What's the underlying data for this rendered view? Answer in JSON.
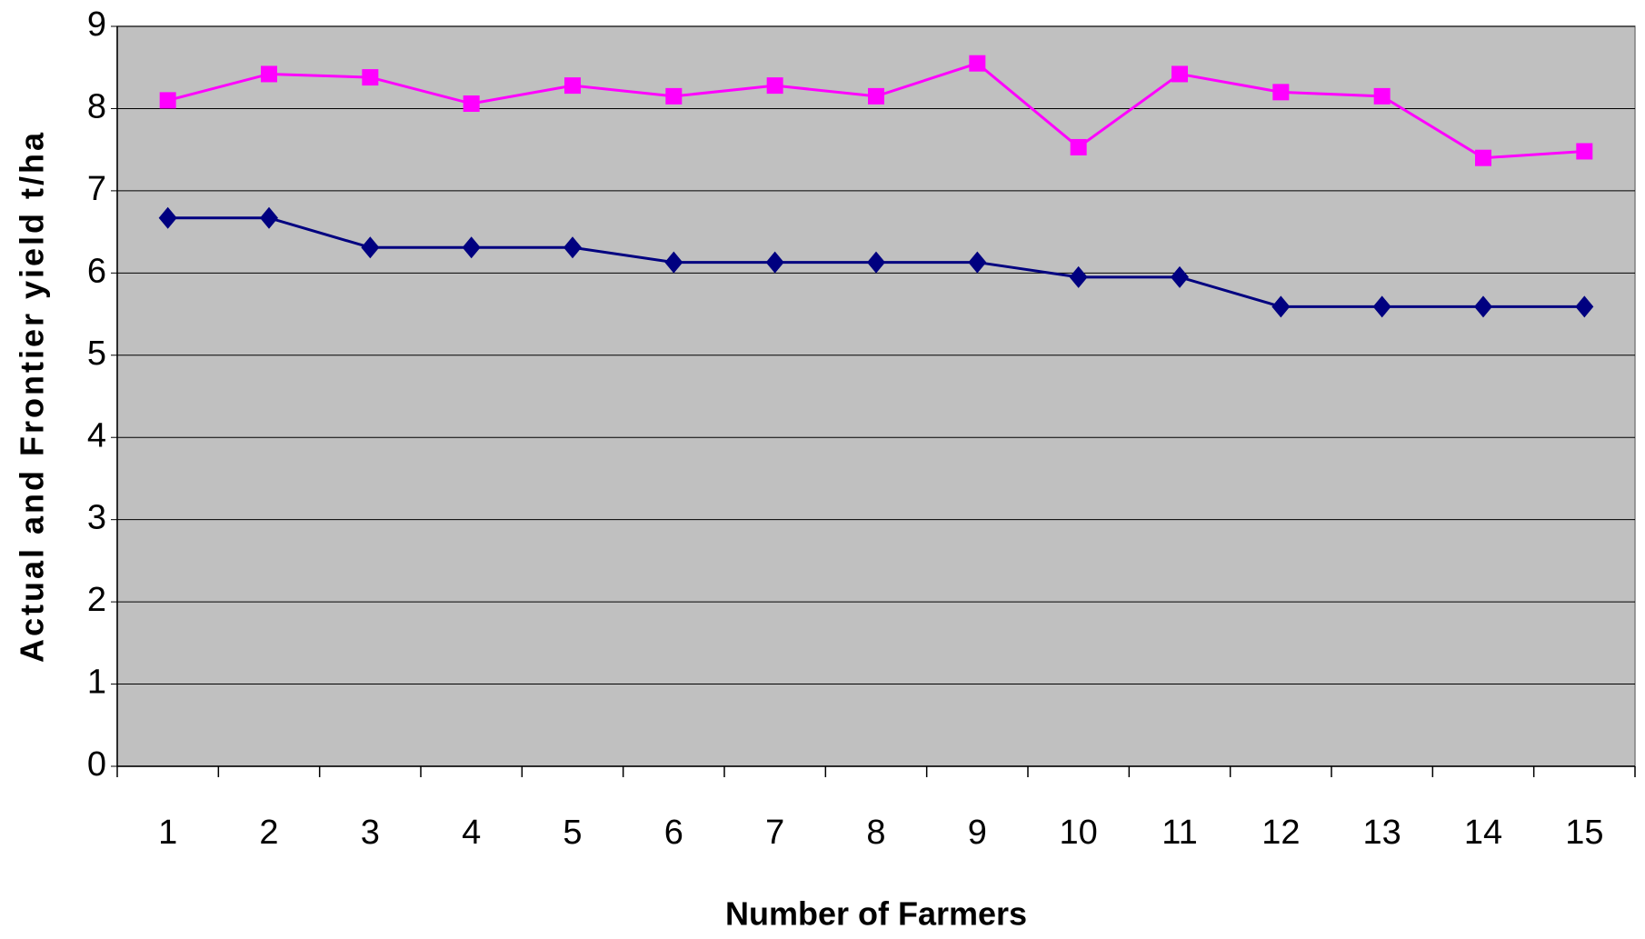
{
  "chart_data": {
    "type": "line",
    "x_label": "Number of Farmers",
    "y_label": "Actual and Frontier yield t/ha",
    "categories": [
      "1",
      "2",
      "3",
      "4",
      "5",
      "6",
      "7",
      "8",
      "9",
      "10",
      "11",
      "12",
      "13",
      "14",
      "15"
    ],
    "series": [
      {
        "color": "#ff00ff",
        "marker": "square",
        "values": [
          8.1,
          8.42,
          8.38,
          8.06,
          8.28,
          8.15,
          8.28,
          8.15,
          8.55,
          7.53,
          8.42,
          8.2,
          8.15,
          7.4,
          7.48
        ]
      },
      {
        "color": "#000080",
        "marker": "diamond",
        "values": [
          6.67,
          6.67,
          6.31,
          6.31,
          6.31,
          6.13,
          6.13,
          6.13,
          6.13,
          5.95,
          5.95,
          5.59,
          5.59,
          5.59,
          5.59
        ]
      }
    ],
    "ylim": [
      0,
      9
    ],
    "yticks": [
      0,
      1,
      2,
      3,
      4,
      5,
      6,
      7,
      8,
      9
    ],
    "grid": true,
    "plot_background": "#c0c0c0"
  }
}
